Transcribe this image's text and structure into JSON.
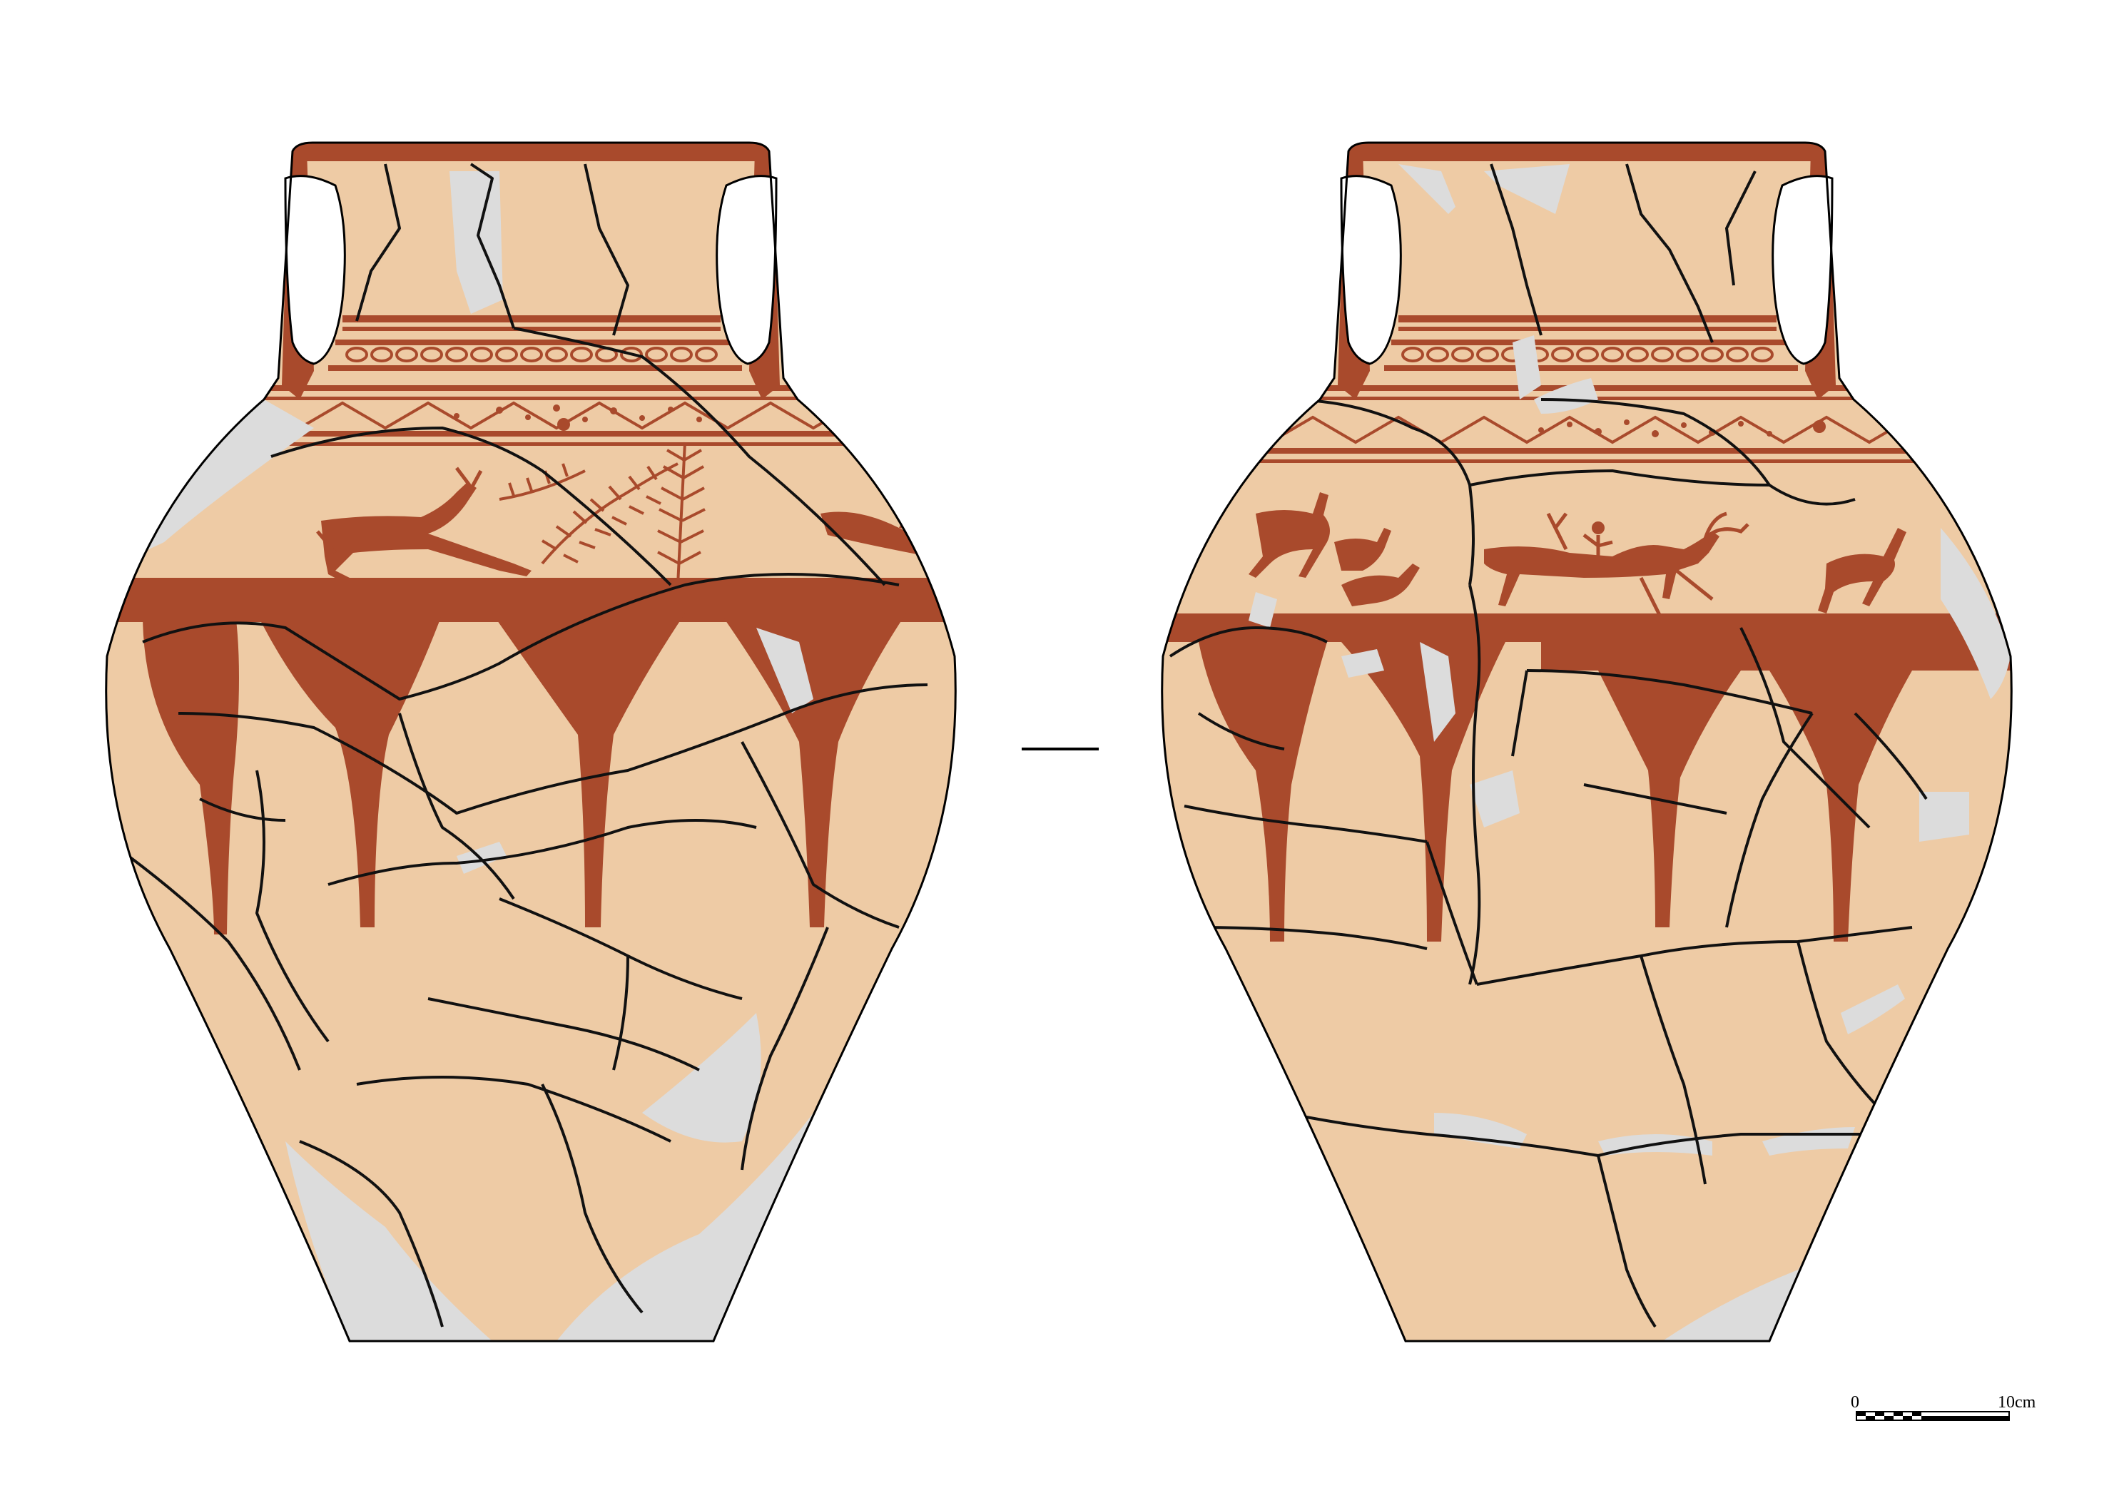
{
  "figure": {
    "colors": {
      "background": "#ffffff",
      "body_fill": "#eecba5",
      "paint": "#a94a2c",
      "restoration_gap": "#dcdcdc",
      "outline": "#000000",
      "crack": "#111111"
    },
    "views": [
      {
        "name": "front-view",
        "motifs": [
          "running-deer",
          "fern-branch",
          "fern-branch",
          "deer-head"
        ]
      },
      {
        "name": "back-view",
        "motifs": [
          "deer-pair",
          "horned-animal",
          "rider-with-deer",
          "deer-right"
        ]
      }
    ],
    "separator": "dash",
    "scale_bar": {
      "label_start": "0",
      "label_end": "10cm",
      "segments": 8
    }
  }
}
